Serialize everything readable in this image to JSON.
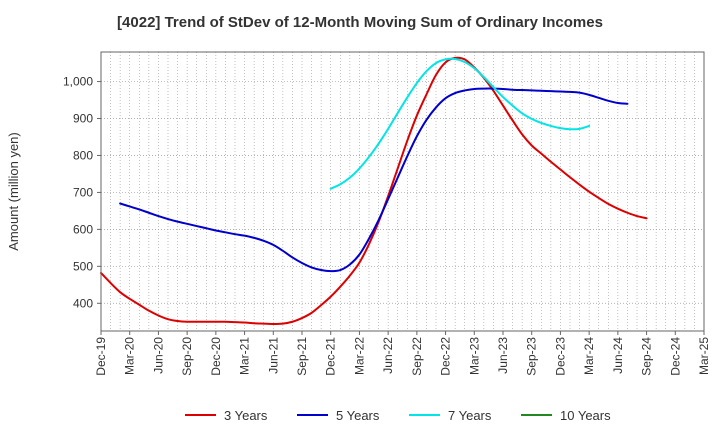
{
  "chart_data": {
    "type": "line",
    "title": "[4022]  Trend of StDev of 12-Month Moving Sum of Ordinary Incomes",
    "xlabel": "",
    "ylabel": "Amount (million yen)",
    "ylim": [
      325,
      1080
    ],
    "yticks": [
      400,
      500,
      600,
      700,
      800,
      900,
      1000
    ],
    "ytick_labels": [
      "400",
      "500",
      "600",
      "700",
      "800",
      "900",
      "1,000"
    ],
    "x_start": "Dec-19",
    "x_months": 63,
    "xtick_labels": [
      "Dec-19",
      "Mar-20",
      "Jun-20",
      "Sep-20",
      "Dec-20",
      "Mar-21",
      "Jun-21",
      "Sep-21",
      "Dec-21",
      "Mar-22",
      "Jun-22",
      "Sep-22",
      "Dec-22",
      "Mar-23",
      "Jun-23",
      "Sep-23",
      "Dec-23",
      "Mar-24",
      "Jun-24",
      "Sep-24",
      "Dec-24",
      "Mar-25"
    ],
    "grid": true,
    "legend_position": "bottom",
    "series": [
      {
        "name": "3 Years",
        "color": "#dd0000",
        "points": [
          [
            0,
            482
          ],
          [
            1,
            455
          ],
          [
            2,
            430
          ],
          [
            3,
            412
          ],
          [
            4,
            396
          ],
          [
            5,
            380
          ],
          [
            6,
            367
          ],
          [
            7,
            357
          ],
          [
            8,
            352
          ],
          [
            9,
            350
          ],
          [
            10,
            350
          ],
          [
            11,
            350
          ],
          [
            12,
            350
          ],
          [
            13,
            350
          ],
          [
            14,
            349
          ],
          [
            15,
            348
          ],
          [
            16,
            346
          ],
          [
            17,
            345
          ],
          [
            18,
            344
          ],
          [
            19,
            345
          ],
          [
            20,
            350
          ],
          [
            21,
            360
          ],
          [
            22,
            374
          ],
          [
            23,
            395
          ],
          [
            24,
            418
          ],
          [
            25,
            445
          ],
          [
            26,
            475
          ],
          [
            27,
            510
          ],
          [
            28,
            560
          ],
          [
            29,
            620
          ],
          [
            30,
            690
          ],
          [
            31,
            765
          ],
          [
            32,
            840
          ],
          [
            33,
            908
          ],
          [
            34,
            965
          ],
          [
            35,
            1018
          ],
          [
            36,
            1052
          ],
          [
            37,
            1064
          ],
          [
            38,
            1060
          ],
          [
            39,
            1038
          ],
          [
            40,
            1010
          ],
          [
            41,
            975
          ],
          [
            42,
            935
          ],
          [
            43,
            895
          ],
          [
            44,
            857
          ],
          [
            45,
            827
          ],
          [
            46,
            805
          ],
          [
            47,
            783
          ],
          [
            48,
            762
          ],
          [
            49,
            741
          ],
          [
            50,
            721
          ],
          [
            51,
            702
          ],
          [
            52,
            685
          ],
          [
            53,
            669
          ],
          [
            54,
            656
          ],
          [
            55,
            645
          ],
          [
            56,
            636
          ],
          [
            57,
            630
          ]
        ]
      },
      {
        "name": "5 Years",
        "color": "#0000cc",
        "points": [
          [
            2,
            670
          ],
          [
            3,
            662
          ],
          [
            4,
            654
          ],
          [
            5,
            645
          ],
          [
            6,
            636
          ],
          [
            7,
            628
          ],
          [
            8,
            621
          ],
          [
            9,
            615
          ],
          [
            10,
            609
          ],
          [
            11,
            603
          ],
          [
            12,
            597
          ],
          [
            13,
            592
          ],
          [
            14,
            587
          ],
          [
            15,
            583
          ],
          [
            16,
            577
          ],
          [
            17,
            569
          ],
          [
            18,
            558
          ],
          [
            19,
            542
          ],
          [
            20,
            524
          ],
          [
            21,
            509
          ],
          [
            22,
            497
          ],
          [
            23,
            490
          ],
          [
            24,
            487
          ],
          [
            25,
            490
          ],
          [
            26,
            505
          ],
          [
            27,
            532
          ],
          [
            28,
            575
          ],
          [
            29,
            625
          ],
          [
            30,
            682
          ],
          [
            31,
            740
          ],
          [
            32,
            798
          ],
          [
            33,
            852
          ],
          [
            34,
            896
          ],
          [
            35,
            930
          ],
          [
            36,
            955
          ],
          [
            37,
            969
          ],
          [
            38,
            976
          ],
          [
            39,
            980
          ],
          [
            40,
            981
          ],
          [
            41,
            981
          ],
          [
            42,
            980
          ],
          [
            43,
            978
          ],
          [
            44,
            977
          ],
          [
            45,
            976
          ],
          [
            46,
            975
          ],
          [
            47,
            974
          ],
          [
            48,
            973
          ],
          [
            49,
            972
          ],
          [
            50,
            970
          ],
          [
            51,
            964
          ],
          [
            52,
            956
          ],
          [
            53,
            948
          ],
          [
            54,
            942
          ],
          [
            55,
            940
          ]
        ]
      },
      {
        "name": "7 Years",
        "color": "#00e5e5",
        "points": [
          [
            24,
            710
          ],
          [
            25,
            722
          ],
          [
            26,
            740
          ],
          [
            27,
            765
          ],
          [
            28,
            796
          ],
          [
            29,
            832
          ],
          [
            30,
            872
          ],
          [
            31,
            915
          ],
          [
            32,
            957
          ],
          [
            33,
            996
          ],
          [
            34,
            1028
          ],
          [
            35,
            1050
          ],
          [
            36,
            1060
          ],
          [
            37,
            1061
          ],
          [
            38,
            1053
          ],
          [
            39,
            1036
          ],
          [
            40,
            1012
          ],
          [
            41,
            985
          ],
          [
            42,
            958
          ],
          [
            43,
            935
          ],
          [
            44,
            914
          ],
          [
            45,
            899
          ],
          [
            46,
            888
          ],
          [
            47,
            880
          ],
          [
            48,
            874
          ],
          [
            49,
            871
          ],
          [
            50,
            872
          ],
          [
            51,
            880
          ]
        ]
      },
      {
        "name": "10 Years",
        "color": "#228822",
        "points": []
      }
    ]
  }
}
